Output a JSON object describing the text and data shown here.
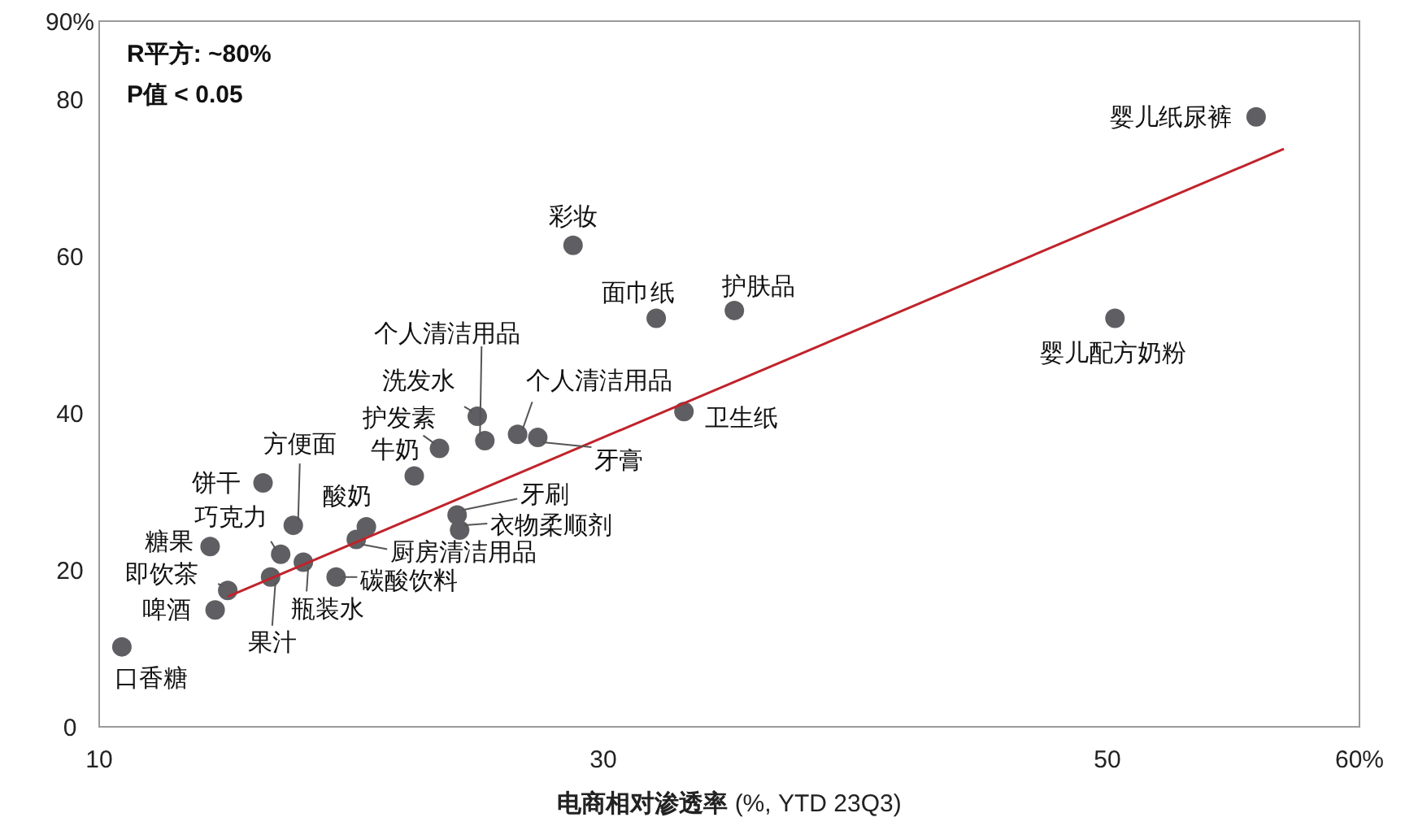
{
  "chart_data": {
    "type": "scatter",
    "xlabel": "电商相对渗透率 (%, YTD 23Q3)",
    "xlim": [
      10,
      60
    ],
    "xticks": [
      10,
      30,
      50,
      {
        "value": 60,
        "label": "60%"
      }
    ],
    "ylim": [
      0,
      90
    ],
    "yticks": [
      0,
      20,
      40,
      60,
      80,
      {
        "value": 90,
        "label": "90%"
      }
    ],
    "grid": false,
    "marker": "circle",
    "series": [
      {
        "color": "#5f5f63",
        "x": [
          10.9,
          14.6,
          15.1,
          14.4,
          16.5,
          17.2,
          17.7,
          16.8,
          18.1,
          19.4,
          20.2,
          20.6,
          22.5,
          23.5,
          25.0,
          25.3,
          26.6,
          27.4,
          24.2,
          24.3,
          28.8,
          32.1,
          35.2,
          33.2,
          50.3,
          55.9
        ],
        "values": [
          10.2,
          14.9,
          17.4,
          23.0,
          31.1,
          22.0,
          25.7,
          19.1,
          21.0,
          19.1,
          23.9,
          25.5,
          32.0,
          35.5,
          39.6,
          36.5,
          37.3,
          36.9,
          27.0,
          25.1,
          61.4,
          52.1,
          53.1,
          40.2,
          52.1,
          77.8
        ]
      },
      {
        "type": "line",
        "color": "#c0232b",
        "line_style": "solid",
        "marker": "none",
        "x": [
          15.1,
          57.0
        ],
        "values": [
          16.6,
          73.7
        ]
      }
    ],
    "annotations": [
      "R平方: ~80%",
      "P值 < 0.05",
      {
        "text": "口香糖",
        "x": 10.9,
        "y": 10.2
      },
      {
        "text": "啤酒",
        "x": 14.6,
        "y": 14.9
      },
      {
        "text": "即饮茶",
        "x": 15.1,
        "y": 17.4
      },
      {
        "text": "糖果",
        "x": 14.4,
        "y": 23.0
      },
      {
        "text": "饼干",
        "x": 16.5,
        "y": 31.1
      },
      {
        "text": "巧克力",
        "x": 17.2,
        "y": 22.0
      },
      {
        "text": "方便面",
        "x": 17.7,
        "y": 25.7
      },
      {
        "text": "果汁",
        "x": 16.8,
        "y": 19.1
      },
      {
        "text": "瓶装水",
        "x": 18.1,
        "y": 21.0
      },
      {
        "text": "碳酸饮料",
        "x": 19.4,
        "y": 19.1
      },
      {
        "text": "厨房清洁用品",
        "x": 20.2,
        "y": 23.9
      },
      {
        "text": "酸奶",
        "x": 20.6,
        "y": 25.5
      },
      {
        "text": "牛奶",
        "x": 22.5,
        "y": 32.0
      },
      {
        "text": "护发素",
        "x": 23.5,
        "y": 35.5
      },
      {
        "text": "洗发水",
        "x": 25.0,
        "y": 39.6
      },
      {
        "text": "个人清洁用品",
        "x": 25.3,
        "y": 36.5
      },
      {
        "text": "个人清洁用品",
        "x": 26.6,
        "y": 37.3
      },
      {
        "text": "牙膏",
        "x": 27.4,
        "y": 36.9
      },
      {
        "text": "牙刷",
        "x": 24.2,
        "y": 27.0
      },
      {
        "text": "衣物柔顺剂",
        "x": 24.3,
        "y": 25.1
      },
      {
        "text": "彩妆",
        "x": 28.8,
        "y": 61.4
      },
      {
        "text": "面巾纸",
        "x": 32.1,
        "y": 52.1
      },
      {
        "text": "护肤品",
        "x": 35.2,
        "y": 53.1
      },
      {
        "text": "卫生纸",
        "x": 33.2,
        "y": 40.2
      },
      {
        "text": "婴儿配方奶粉",
        "x": 50.3,
        "y": 52.1
      },
      {
        "text": "婴儿纸尿裤",
        "x": 55.9,
        "y": 77.8
      }
    ]
  }
}
